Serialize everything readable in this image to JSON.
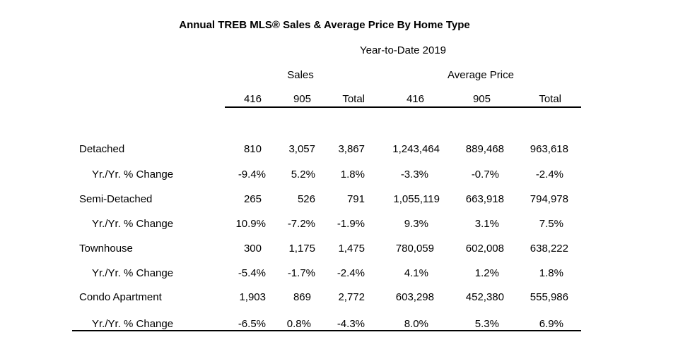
{
  "title": "Annual TREB MLS® Sales & Average Price  By Home Type",
  "period": "Year-to-Date 2019",
  "groups": {
    "sales": "Sales",
    "avg_price": "Average Price"
  },
  "columns": [
    "416",
    "905",
    "Total",
    "416",
    "905",
    "Total"
  ],
  "rows": [
    {
      "label": "Detached",
      "values": [
        "810",
        "3,057",
        "3,867",
        "1,243,464",
        "889,468",
        "963,618"
      ]
    },
    {
      "label": "Yr./Yr. % Change",
      "values": [
        "-9.4%",
        "5.2%",
        "1.8%",
        "-3.3%",
        "-0.7%",
        "-2.4%"
      ]
    },
    {
      "label": "Semi-Detached",
      "values": [
        "265",
        "526",
        "791",
        "1,055,119",
        "663,918",
        "794,978"
      ]
    },
    {
      "label": "Yr./Yr. % Change",
      "values": [
        "10.9%",
        "-7.2%",
        "-1.9%",
        "9.3%",
        "3.1%",
        "7.5%"
      ]
    },
    {
      "label": "Townhouse",
      "values": [
        "300",
        "1,175",
        "1,475",
        "780,059",
        "602,008",
        "638,222"
      ]
    },
    {
      "label": "Yr./Yr. % Change",
      "values": [
        "-5.4%",
        "-1.7%",
        "-2.4%",
        "4.1%",
        "1.2%",
        "1.8%"
      ]
    },
    {
      "label": "Condo Apartment",
      "values": [
        "1,903",
        "869",
        "2,772",
        "603,298",
        "452,380",
        "555,986"
      ]
    },
    {
      "label": "Yr./Yr. % Change",
      "values": [
        "-6.5%",
        "0.8%",
        "-4.3%",
        "8.0%",
        "5.3%",
        "6.9%"
      ]
    }
  ]
}
